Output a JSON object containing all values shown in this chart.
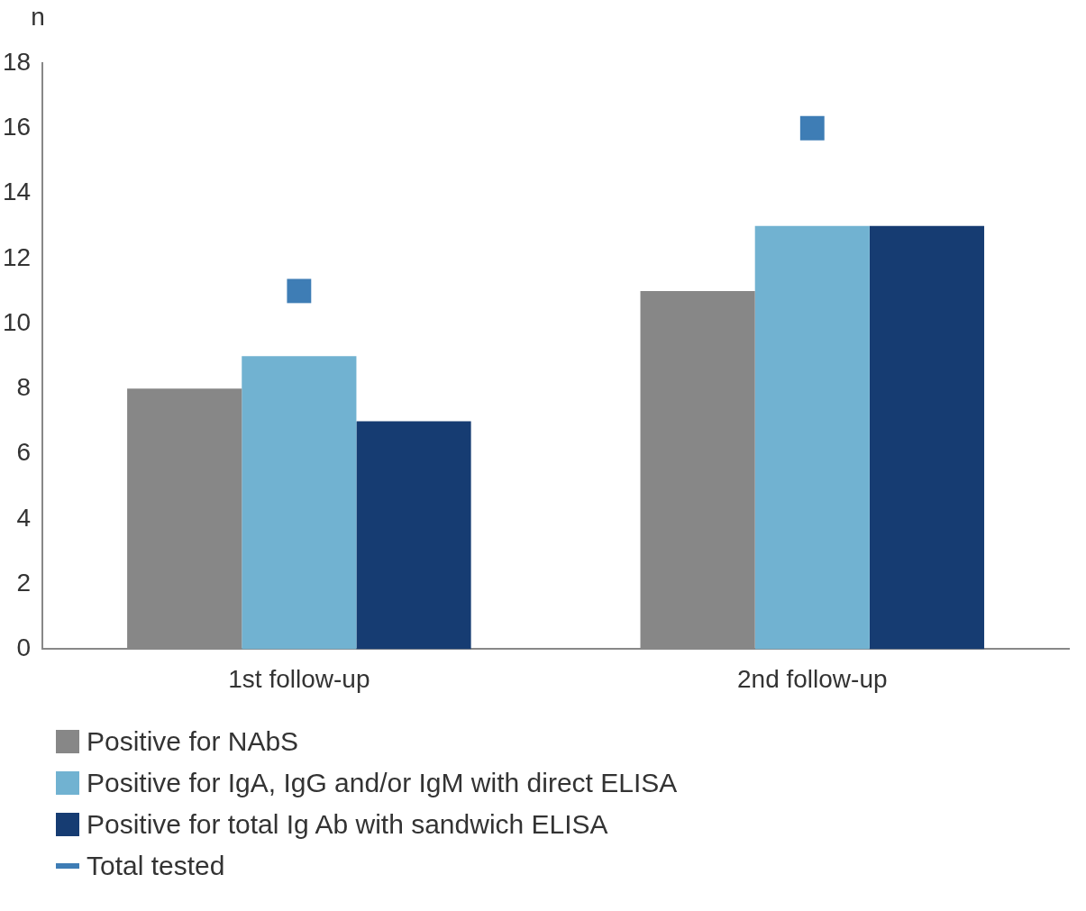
{
  "chart_data": {
    "type": "bar",
    "ylabel": "n",
    "categories": [
      "1st follow-up",
      "2nd follow-up"
    ],
    "series": [
      {
        "name": "Positive for NAbS",
        "color": "#878787",
        "values": [
          8,
          11
        ]
      },
      {
        "name": "Positive for IgA, IgG and/or IgM with direct ELISA",
        "color": "#71b2d1",
        "values": [
          9,
          13
        ]
      },
      {
        "name": "Positive for total Ig Ab with sandwich ELISA",
        "color": "#163c72",
        "values": [
          7,
          13
        ]
      },
      {
        "name": "Total tested",
        "type": "scatter",
        "marker": "square",
        "color": "#3e7db5",
        "values": [
          11,
          16
        ]
      }
    ],
    "ylim": [
      0,
      18
    ],
    "yticks": [
      0,
      2,
      4,
      6,
      8,
      10,
      12,
      14,
      16,
      18
    ],
    "grid": false,
    "legend": "bottom"
  }
}
